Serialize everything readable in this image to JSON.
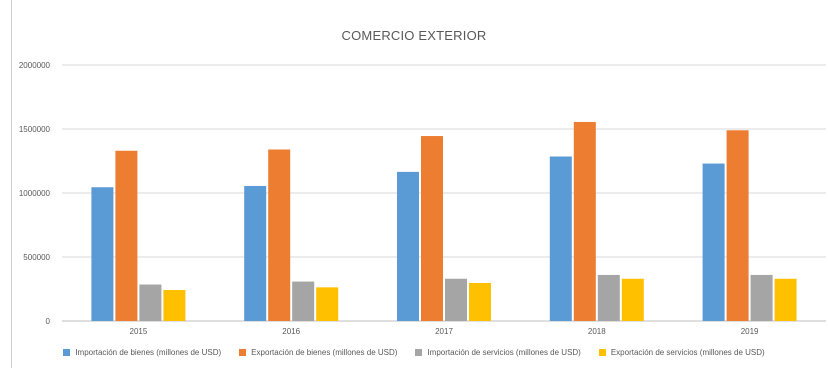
{
  "chart_data": {
    "type": "bar",
    "title": "COMERCIO EXTERIOR",
    "xlabel": "",
    "ylabel": "",
    "categories": [
      "2015",
      "2016",
      "2017",
      "2018",
      "2019"
    ],
    "ylim": [
      0,
      2000000
    ],
    "yticks": [
      "0",
      "500000",
      "1000000",
      "1500000",
      "2000000"
    ],
    "grid": true,
    "legend_position": "bottom",
    "series": [
      {
        "name": "Importación de bienes (millones de USD)",
        "color": "#5b9bd5",
        "values": [
          1045000,
          1055000,
          1165000,
          1285000,
          1230000
        ]
      },
      {
        "name": "Exportación de bienes (millones de USD)",
        "color": "#ed7d31",
        "values": [
          1330000,
          1340000,
          1445000,
          1555000,
          1490000
        ]
      },
      {
        "name": "Importación de servicios (millones de USD)",
        "color": "#a5a5a5",
        "values": [
          285000,
          308000,
          330000,
          360000,
          360000
        ]
      },
      {
        "name": "Exportación de servicios (millones de USD)",
        "color": "#ffc000",
        "values": [
          242000,
          263000,
          297000,
          330000,
          330000
        ]
      }
    ]
  }
}
